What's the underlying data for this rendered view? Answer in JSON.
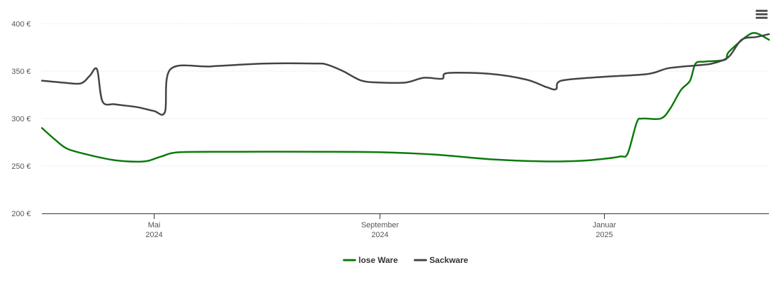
{
  "chart_data": {
    "type": "line",
    "title": "",
    "xlabel": "",
    "ylabel": "",
    "ylim": [
      200,
      400
    ],
    "y_ticks": [
      {
        "value": 400,
        "label": "400 €"
      },
      {
        "value": 350,
        "label": "350 €"
      },
      {
        "value": 300,
        "label": "300 €"
      },
      {
        "value": 250,
        "label": "250 €"
      },
      {
        "value": 200,
        "label": "200 €"
      }
    ],
    "x_range": [
      "2024-03-01",
      "2025-04-01"
    ],
    "x_ticks": [
      {
        "date": "2024-05-01",
        "month": "Mai",
        "year": "2024"
      },
      {
        "date": "2024-09-01",
        "month": "September",
        "year": "2024"
      },
      {
        "date": "2025-01-01",
        "month": "Januar",
        "year": "2025"
      }
    ],
    "grid": true,
    "legend_position": "bottom",
    "series": [
      {
        "name": "lose Ware",
        "color": "#0a7a0a",
        "points": [
          [
            "2024-03-01",
            290
          ],
          [
            "2024-03-08",
            278
          ],
          [
            "2024-03-15",
            268
          ],
          [
            "2024-03-28",
            261
          ],
          [
            "2024-04-10",
            256
          ],
          [
            "2024-04-22",
            254.5
          ],
          [
            "2024-04-28",
            255.5
          ],
          [
            "2024-05-05",
            260
          ],
          [
            "2024-05-15",
            264.5
          ],
          [
            "2024-06-15",
            265
          ],
          [
            "2024-08-01",
            265
          ],
          [
            "2024-09-01",
            264.5
          ],
          [
            "2024-10-01",
            262
          ],
          [
            "2024-11-01",
            257
          ],
          [
            "2024-12-01",
            254.8
          ],
          [
            "2024-12-20",
            255.5
          ],
          [
            "2025-01-01",
            257.5
          ],
          [
            "2025-01-10",
            260
          ],
          [
            "2025-01-14",
            263
          ],
          [
            "2025-01-19",
            296
          ],
          [
            "2025-01-22",
            300
          ],
          [
            "2025-02-01",
            300
          ],
          [
            "2025-02-06",
            310
          ],
          [
            "2025-02-12",
            330
          ],
          [
            "2025-02-17",
            340
          ],
          [
            "2025-02-20",
            358
          ],
          [
            "2025-02-25",
            360
          ],
          [
            "2025-03-08",
            362
          ],
          [
            "2025-03-10",
            370
          ],
          [
            "2025-03-20",
            387
          ],
          [
            "2025-03-25",
            390
          ],
          [
            "2025-04-01",
            383
          ]
        ]
      },
      {
        "name": "Sackware",
        "color": "#434348",
        "points": [
          [
            "2024-03-01",
            340
          ],
          [
            "2024-03-12",
            338
          ],
          [
            "2024-03-22",
            337
          ],
          [
            "2024-03-27",
            345
          ],
          [
            "2024-03-31",
            352
          ],
          [
            "2024-04-03",
            318
          ],
          [
            "2024-04-10",
            315
          ],
          [
            "2024-04-22",
            312
          ],
          [
            "2024-05-01",
            308
          ],
          [
            "2024-05-07",
            307
          ],
          [
            "2024-05-10",
            352
          ],
          [
            "2024-06-01",
            355
          ],
          [
            "2024-07-01",
            358
          ],
          [
            "2024-07-28",
            358
          ],
          [
            "2024-08-03",
            357
          ],
          [
            "2024-08-12",
            350
          ],
          [
            "2024-08-22",
            340
          ],
          [
            "2024-09-01",
            338
          ],
          [
            "2024-09-15",
            338
          ],
          [
            "2024-09-25",
            343
          ],
          [
            "2024-10-05",
            342
          ],
          [
            "2024-10-08",
            348
          ],
          [
            "2024-11-01",
            347
          ],
          [
            "2024-11-20",
            341
          ],
          [
            "2024-12-01",
            333
          ],
          [
            "2024-12-06",
            331
          ],
          [
            "2024-12-09",
            340
          ],
          [
            "2025-01-01",
            344
          ],
          [
            "2025-01-25",
            347
          ],
          [
            "2025-02-05",
            353
          ],
          [
            "2025-02-20",
            356
          ],
          [
            "2025-03-01",
            358
          ],
          [
            "2025-03-10",
            365
          ],
          [
            "2025-03-17",
            383
          ],
          [
            "2025-03-25",
            386
          ],
          [
            "2025-04-01",
            389
          ]
        ]
      }
    ]
  },
  "toolbar": {
    "menu_icon": "hamburger-menu-icon"
  }
}
